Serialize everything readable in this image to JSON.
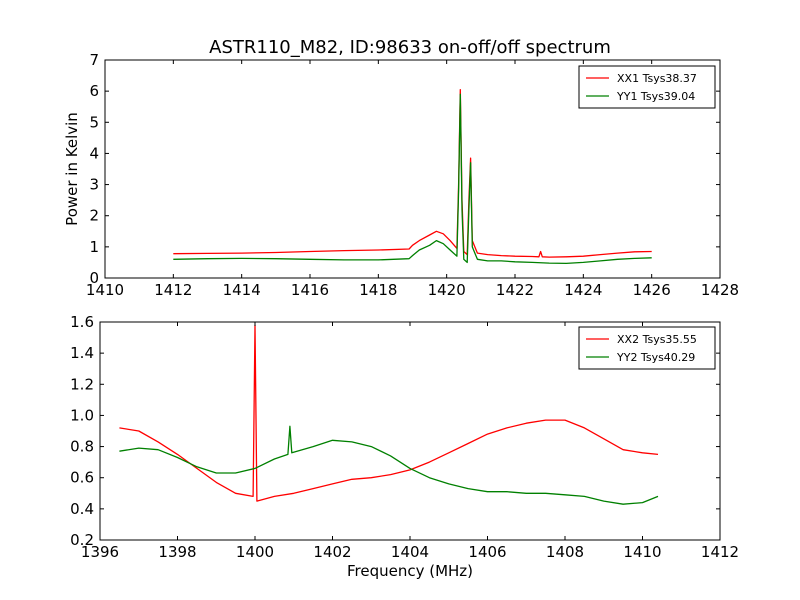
{
  "figure": {
    "title": "ASTR110_M82, ID:98633 on-off/off spectrum"
  },
  "chart_data": [
    {
      "type": "line",
      "title": "ASTR110_M82, ID:98633 on-off/off spectrum",
      "xlabel": "",
      "ylabel": "Power in Kelvin",
      "xlim": [
        1410,
        1428
      ],
      "ylim": [
        0,
        7
      ],
      "xticks": [
        "1410",
        "1412",
        "1414",
        "1416",
        "1418",
        "1420",
        "1422",
        "1424",
        "1426",
        "1428"
      ],
      "yticks": [
        "0",
        "1",
        "2",
        "3",
        "4",
        "5",
        "6",
        "7"
      ],
      "legend_position": "top-right",
      "grid": false,
      "series": [
        {
          "name": "XX1 Tsys38.37",
          "color": "#ff0000",
          "x": [
            1412.0,
            1413.0,
            1414.0,
            1415.0,
            1416.0,
            1417.0,
            1418.0,
            1418.9,
            1419.0,
            1419.2,
            1419.5,
            1419.7,
            1419.9,
            1420.1,
            1420.3,
            1420.35,
            1420.4,
            1420.45,
            1420.5,
            1420.6,
            1420.65,
            1420.7,
            1420.75,
            1420.9,
            1421.2,
            1421.6,
            1422.0,
            1422.5,
            1422.7,
            1422.75,
            1422.8,
            1423.0,
            1423.5,
            1424.0,
            1424.5,
            1425.0,
            1425.5,
            1426.0
          ],
          "y": [
            0.78,
            0.79,
            0.8,
            0.82,
            0.85,
            0.88,
            0.9,
            0.93,
            1.05,
            1.2,
            1.38,
            1.5,
            1.42,
            1.2,
            0.95,
            3.0,
            6.05,
            2.5,
            0.85,
            0.75,
            2.5,
            3.85,
            1.2,
            0.8,
            0.75,
            0.72,
            0.7,
            0.69,
            0.68,
            0.85,
            0.68,
            0.67,
            0.68,
            0.7,
            0.75,
            0.8,
            0.84,
            0.85
          ]
        },
        {
          "name": "YY1 Tsys39.04",
          "color": "#008000",
          "x": [
            1412.0,
            1413.0,
            1414.0,
            1415.0,
            1416.0,
            1417.0,
            1418.0,
            1418.9,
            1419.0,
            1419.2,
            1419.5,
            1419.7,
            1419.9,
            1420.1,
            1420.3,
            1420.35,
            1420.4,
            1420.45,
            1420.5,
            1420.6,
            1420.65,
            1420.7,
            1420.75,
            1420.9,
            1421.2,
            1421.6,
            1422.0,
            1422.5,
            1423.0,
            1423.5,
            1424.0,
            1424.5,
            1425.0,
            1425.5,
            1426.0
          ],
          "y": [
            0.6,
            0.62,
            0.63,
            0.62,
            0.6,
            0.58,
            0.58,
            0.62,
            0.72,
            0.9,
            1.05,
            1.2,
            1.1,
            0.9,
            0.7,
            2.8,
            5.9,
            2.2,
            0.6,
            0.5,
            2.2,
            3.7,
            1.0,
            0.6,
            0.55,
            0.55,
            0.52,
            0.5,
            0.48,
            0.47,
            0.5,
            0.55,
            0.6,
            0.63,
            0.65
          ]
        }
      ]
    },
    {
      "type": "line",
      "title": "",
      "xlabel": "Frequency (MHz)",
      "ylabel": "",
      "xlim": [
        1396,
        1412
      ],
      "ylim": [
        0.2,
        1.6
      ],
      "xticks": [
        "1396",
        "1398",
        "1400",
        "1402",
        "1404",
        "1406",
        "1408",
        "1410",
        "1412"
      ],
      "yticks": [
        "0.2",
        "0.4",
        "0.6",
        "0.8",
        "1.0",
        "1.2",
        "1.4",
        "1.6"
      ],
      "legend_position": "top-right",
      "grid": false,
      "series": [
        {
          "name": "XX2 Tsys35.55",
          "color": "#ff0000",
          "x": [
            1396.5,
            1397.0,
            1397.5,
            1398.0,
            1398.5,
            1399.0,
            1399.5,
            1399.95,
            1400.0,
            1400.05,
            1400.5,
            1401.0,
            1401.5,
            1402.0,
            1402.5,
            1403.0,
            1403.5,
            1404.0,
            1404.5,
            1405.0,
            1405.5,
            1406.0,
            1406.5,
            1407.0,
            1407.5,
            1408.0,
            1408.5,
            1409.0,
            1409.5,
            1410.0,
            1410.4
          ],
          "y": [
            0.92,
            0.9,
            0.83,
            0.75,
            0.66,
            0.57,
            0.5,
            0.48,
            1.58,
            0.45,
            0.48,
            0.5,
            0.53,
            0.56,
            0.59,
            0.6,
            0.62,
            0.65,
            0.7,
            0.76,
            0.82,
            0.88,
            0.92,
            0.95,
            0.97,
            0.97,
            0.92,
            0.85,
            0.78,
            0.76,
            0.75
          ]
        },
        {
          "name": "YY2 Tsys40.29",
          "color": "#008000",
          "x": [
            1396.5,
            1397.0,
            1397.5,
            1398.0,
            1398.5,
            1399.0,
            1399.5,
            1400.0,
            1400.5,
            1400.85,
            1400.9,
            1400.95,
            1401.5,
            1402.0,
            1402.5,
            1403.0,
            1403.5,
            1404.0,
            1404.5,
            1405.0,
            1405.5,
            1406.0,
            1406.5,
            1407.0,
            1407.5,
            1408.0,
            1408.5,
            1409.0,
            1409.5,
            1410.0,
            1410.4
          ],
          "y": [
            0.77,
            0.79,
            0.78,
            0.73,
            0.67,
            0.63,
            0.63,
            0.66,
            0.72,
            0.75,
            0.93,
            0.76,
            0.8,
            0.84,
            0.83,
            0.8,
            0.74,
            0.66,
            0.6,
            0.56,
            0.53,
            0.51,
            0.51,
            0.5,
            0.5,
            0.49,
            0.48,
            0.45,
            0.43,
            0.44,
            0.48
          ]
        }
      ]
    }
  ]
}
